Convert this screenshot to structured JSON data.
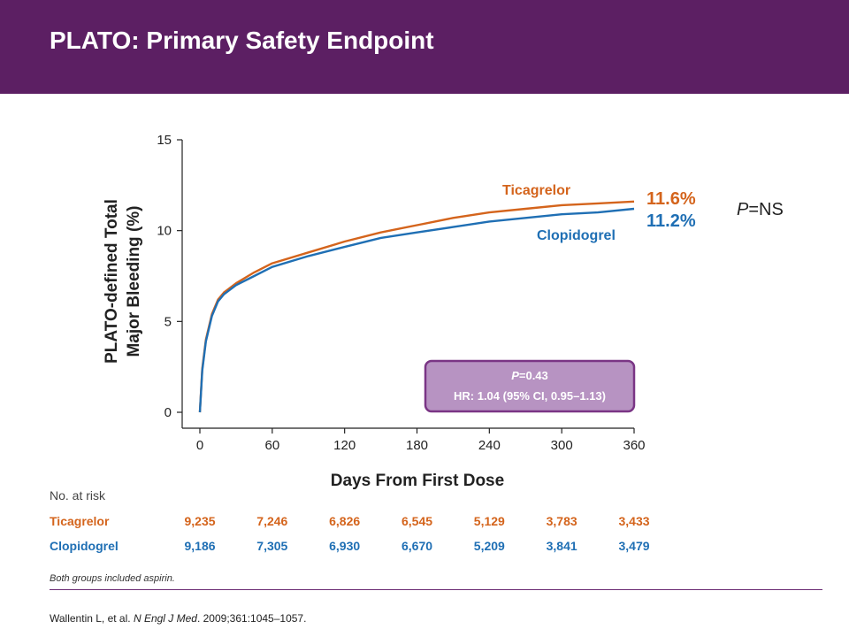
{
  "slide": {
    "title": "PLATO: Primary Safety Endpoint",
    "footnote": "Both groups included aspirin.",
    "citation_prefix": "Wallentin L, et al. ",
    "citation_journal": "N Engl J Med",
    "citation_suffix": ". 2009;361:1045–1057."
  },
  "colors": {
    "header": "#5c1f63",
    "ticagrelor": "#d4641c",
    "clopidogrel": "#1f6fb4",
    "box_fill": "#b793c2",
    "box_border": "#7a3585"
  },
  "chart_data": {
    "type": "line",
    "xlabel": "Days From First Dose",
    "ylabel_line1": "PLATO-defined Total",
    "ylabel_line2": "Major Bleeding (%)",
    "xlim": [
      0,
      360
    ],
    "ylim": [
      0,
      15
    ],
    "xticks": [
      0,
      60,
      120,
      180,
      240,
      300,
      360
    ],
    "yticks": [
      0,
      5,
      10,
      15
    ],
    "series": [
      {
        "name": "Ticagrelor",
        "end_label": "11.6%",
        "color": "#d4641c",
        "points": [
          [
            0,
            0
          ],
          [
            2,
            2.4
          ],
          [
            5,
            4.0
          ],
          [
            10,
            5.4
          ],
          [
            15,
            6.2
          ],
          [
            20,
            6.6
          ],
          [
            30,
            7.1
          ],
          [
            45,
            7.7
          ],
          [
            60,
            8.2
          ],
          [
            90,
            8.8
          ],
          [
            120,
            9.4
          ],
          [
            150,
            9.9
          ],
          [
            180,
            10.3
          ],
          [
            210,
            10.7
          ],
          [
            240,
            11.0
          ],
          [
            270,
            11.2
          ],
          [
            300,
            11.4
          ],
          [
            330,
            11.5
          ],
          [
            360,
            11.6
          ]
        ]
      },
      {
        "name": "Clopidogrel",
        "end_label": "11.2%",
        "color": "#1f6fb4",
        "points": [
          [
            0,
            0
          ],
          [
            2,
            2.3
          ],
          [
            5,
            3.9
          ],
          [
            10,
            5.3
          ],
          [
            15,
            6.1
          ],
          [
            20,
            6.5
          ],
          [
            30,
            7.0
          ],
          [
            45,
            7.5
          ],
          [
            60,
            8.0
          ],
          [
            90,
            8.6
          ],
          [
            120,
            9.1
          ],
          [
            150,
            9.6
          ],
          [
            180,
            9.9
          ],
          [
            210,
            10.2
          ],
          [
            240,
            10.5
          ],
          [
            270,
            10.7
          ],
          [
            300,
            10.9
          ],
          [
            330,
            11.0
          ],
          [
            360,
            11.2
          ]
        ]
      }
    ],
    "pvalue_right": "=NS",
    "pvalue_right_p": "P",
    "stats_box": {
      "p_label": "P",
      "p_value": "=0.43",
      "hr": "HR: 1.04 (95% CI, 0.95–1.13)"
    }
  },
  "risk_table": {
    "label": "No. at risk",
    "days": [
      0,
      60,
      120,
      180,
      240,
      300,
      360
    ],
    "rows": [
      {
        "name": "Ticagrelor",
        "color": "#d4641c",
        "values": [
          "9,235",
          "7,246",
          "6,826",
          "6,545",
          "5,129",
          "3,783",
          "3,433"
        ]
      },
      {
        "name": "Clopidogrel",
        "color": "#1f6fb4",
        "values": [
          "9,186",
          "7,305",
          "6,930",
          "6,670",
          "5,209",
          "3,841",
          "3,479"
        ]
      }
    ]
  }
}
